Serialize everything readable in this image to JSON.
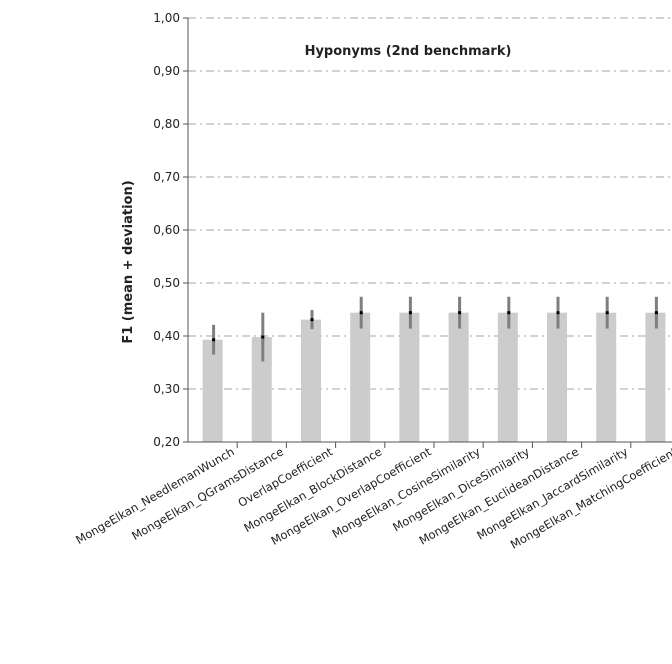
{
  "chart_data": {
    "type": "bar",
    "title": "Hyponyms (2nd benchmark)",
    "xlabel": "",
    "ylabel": "F1 (mean + deviation)",
    "ylim": [
      0.2,
      1.0
    ],
    "yticks": [
      "1,00",
      "0,90",
      "0,80",
      "0,70",
      "0,60",
      "0,50",
      "0,40",
      "0,30",
      "0,20"
    ],
    "ytick_values": [
      1.0,
      0.9,
      0.8,
      0.7,
      0.6,
      0.5,
      0.4,
      0.3,
      0.2
    ],
    "grid": true,
    "categories": [
      "MongeElkan_NeedlemanWunch",
      "MongeElkan_QGramsDistance",
      "OverlapCoefficient",
      "MongeElkan_BlockDistance",
      "MongeElkan_OverlapCoefficient",
      "MongeElkan_CosineSimilarity",
      "MongeElkan_DiceSimilarity",
      "MongeElkan_EuclideanDistance",
      "MongeElkan_JaccardSimilarity",
      "MongeElkan_MatchingCoefficient"
    ],
    "values": [
      0.393,
      0.398,
      0.431,
      0.444,
      0.444,
      0.444,
      0.444,
      0.444,
      0.444,
      0.444
    ],
    "deviation": [
      0.028,
      0.046,
      0.018,
      0.03,
      0.03,
      0.03,
      0.03,
      0.03,
      0.03,
      0.03
    ],
    "colors": {
      "bar": "#cccccc",
      "error_bar": "#7f7f7f",
      "mean_dot": "#000000",
      "grid": "#a6a6a6",
      "axis": "#555555"
    }
  }
}
